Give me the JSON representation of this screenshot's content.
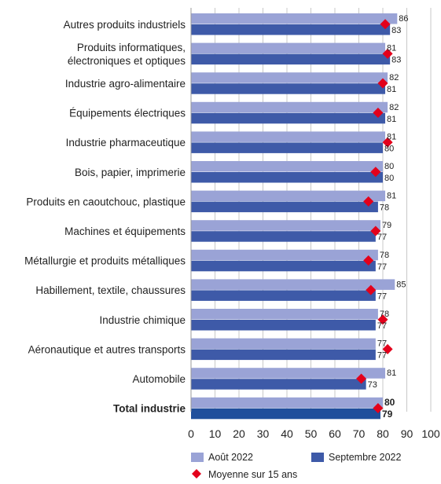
{
  "chart_data": {
    "type": "bar",
    "orientation": "horizontal",
    "categories": [
      [
        "Autres produits industriels"
      ],
      [
        "Produits informatiques,",
        "électroniques et optiques"
      ],
      [
        "Industrie agro-alimentaire"
      ],
      [
        "Équipements électriques"
      ],
      [
        "Industrie pharmaceutique"
      ],
      [
        "Bois, papier, imprimerie"
      ],
      [
        "Produits en caoutchouc, plastique"
      ],
      [
        "Machines et équipements"
      ],
      [
        "Métallurgie et produits métalliques"
      ],
      [
        "Habillement, textile, chaussures"
      ],
      [
        "Industrie chimique"
      ],
      [
        "Aéronautique et autres transports"
      ],
      [
        "Automobile"
      ],
      [
        "Total industrie"
      ]
    ],
    "bold_category_index": 13,
    "series": [
      {
        "name": "Août 2022",
        "type": "bar",
        "color": "#9aa3d6",
        "values": [
          86,
          81,
          82,
          82,
          81,
          80,
          81,
          79,
          78,
          85,
          78,
          77,
          81,
          80
        ]
      },
      {
        "name": "Septembre 2022",
        "type": "bar",
        "color": "#3e5aa8",
        "values": [
          83,
          83,
          81,
          81,
          80,
          80,
          78,
          77,
          77,
          77,
          77,
          77,
          73,
          79
        ]
      },
      {
        "name": "Moyenne sur 15 ans",
        "type": "marker",
        "color": "#e3001b",
        "values": [
          81,
          82,
          80,
          78,
          82,
          77,
          74,
          77,
          74,
          75,
          80,
          82,
          71,
          78
        ]
      }
    ],
    "total_bar_color": "#1f4f9c",
    "xlim": [
      0,
      100
    ],
    "xticks": [
      0,
      10,
      20,
      30,
      40,
      50,
      60,
      70,
      80,
      90,
      100
    ],
    "grid": "vertical",
    "legend_position": "bottom"
  }
}
